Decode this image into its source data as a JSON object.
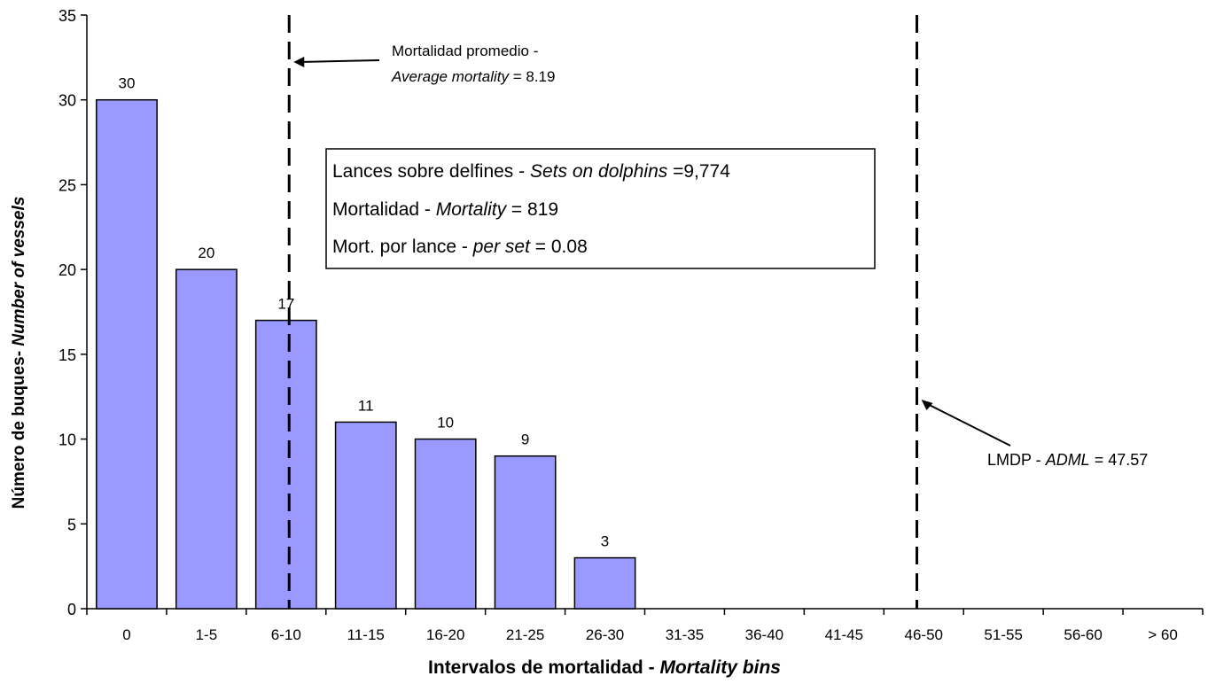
{
  "chart_data": {
    "type": "bar",
    "title": "",
    "xlabel": {
      "plain": "Intervalos de mortalidad - ",
      "italic": "Mortality bins"
    },
    "ylabel": {
      "plain": "Número de buques- ",
      "italic": "Number of vessels"
    },
    "ylim": [
      0,
      35
    ],
    "yticks": [
      0,
      5,
      10,
      15,
      20,
      25,
      30,
      35
    ],
    "categories": [
      "0",
      "1-5",
      "6-10",
      "11-15",
      "16-20",
      "21-25",
      "26-30",
      "31-35",
      "36-40",
      "41-45",
      "46-50",
      "51-55",
      "56-60",
      "> 60"
    ],
    "values": [
      30,
      20,
      17,
      11,
      10,
      9,
      3,
      0,
      0,
      0,
      0,
      0,
      0,
      0
    ],
    "bar_labels": [
      "30",
      "20",
      "17",
      "11",
      "10",
      "9",
      "3",
      "",
      "",
      "",
      "",
      "",
      "",
      ""
    ],
    "bar_color": "#9999ff",
    "grid": false,
    "reference_lines": [
      {
        "name": "average",
        "x_value": 8.19,
        "style": "dashed",
        "label_line1": "Mortalidad promedio -",
        "label_line2_italic": "Average mortality",
        "label_line2_plain": " = 8.19"
      },
      {
        "name": "adml",
        "x_value": 47.57,
        "style": "dashed",
        "label_plain": "LMDP - ",
        "label_italic": "ADML",
        "label_value": " = 47.57"
      }
    ],
    "info_box": {
      "line1_plain": "Lances sobre delfines - ",
      "line1_italic": "Sets on dolphins ",
      "line1_value": "=9,774",
      "line2_plain": "Mortalidad - ",
      "line2_italic": "Mortality",
      "line2_value": " = 819",
      "line3_plain": "Mort. por lance - ",
      "line3_italic": "per set ",
      "line3_value": " = 0.08"
    }
  }
}
